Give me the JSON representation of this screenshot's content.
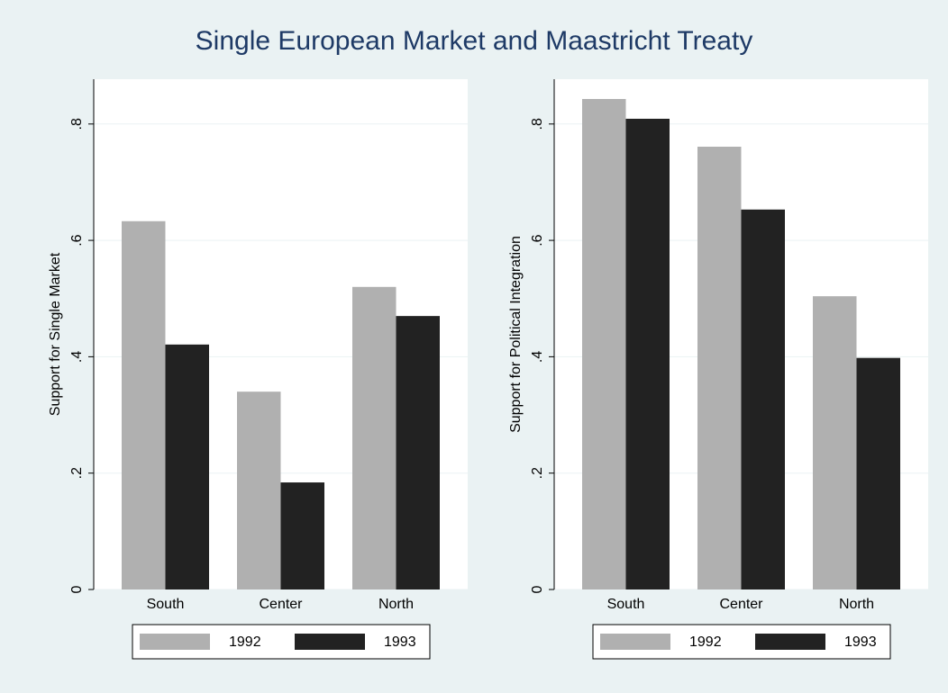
{
  "title": "Single European Market and Maastricht Treaty",
  "chart_data": [
    {
      "type": "bar",
      "y_label": "Support for Single Market",
      "categories": [
        "South",
        "Center",
        "North"
      ],
      "series": [
        {
          "name": "1992",
          "color": "#b0b0b0",
          "values": [
            0.633,
            0.34,
            0.52
          ]
        },
        {
          "name": "1993",
          "color": "#222222",
          "values": [
            0.421,
            0.184,
            0.47
          ]
        }
      ],
      "ylim": [
        0,
        0.877
      ],
      "yticks": [
        0,
        {
          "value": 0.2,
          "label": ".2"
        },
        {
          "value": 0.4,
          "label": ".4"
        },
        {
          "value": 0.6,
          "label": ".6"
        },
        {
          "value": 0.8,
          "label": ".8"
        }
      ],
      "grid": true,
      "legend": "bottom"
    },
    {
      "type": "bar",
      "y_label": "Support for Political Integration",
      "categories": [
        "South",
        "Center",
        "North"
      ],
      "series": [
        {
          "name": "1992",
          "color": "#b0b0b0",
          "values": [
            0.843,
            0.761,
            0.504
          ]
        },
        {
          "name": "1993",
          "color": "#222222",
          "values": [
            0.809,
            0.653,
            0.398
          ]
        }
      ],
      "ylim": [
        0,
        0.877
      ],
      "yticks": [
        0,
        {
          "value": 0.2,
          "label": ".2"
        },
        {
          "value": 0.4,
          "label": ".4"
        },
        {
          "value": 0.6,
          "label": ".6"
        },
        {
          "value": 0.8,
          "label": ".8"
        }
      ],
      "grid": true,
      "legend": "bottom"
    }
  ]
}
